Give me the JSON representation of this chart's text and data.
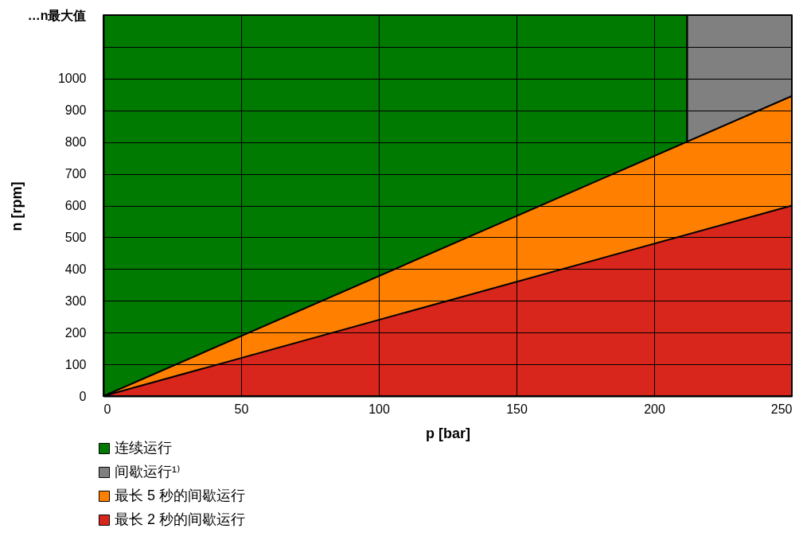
{
  "chart_data": {
    "type": "area",
    "xlabel": "p [bar]",
    "ylabel": "n [rpm]",
    "xlim": [
      0,
      250
    ],
    "xticks": [
      0,
      50,
      100,
      150,
      200,
      250
    ],
    "ylim": [
      0,
      1200
    ],
    "yticks": [
      0,
      100,
      200,
      300,
      400,
      500,
      600,
      700,
      800,
      900,
      1000,
      {
        "value": 1100,
        "label": null
      },
      {
        "value": 1200,
        "label": "…n最大值"
      }
    ],
    "grid": true,
    "legend": "bottom left",
    "series": [
      {
        "name": "连续运行",
        "color": "#007a00",
        "x": [
          0,
          212
        ],
        "values": [
          1200,
          1200
        ]
      },
      {
        "name": "间歇运行¹⁾",
        "color": "#808080",
        "x": [
          212,
          250
        ],
        "values": [
          1200,
          1200
        ]
      },
      {
        "name": "最长 5 秒的间歇运行",
        "color": "#ff8000",
        "x": [
          0,
          250
        ],
        "values": [
          0,
          945
        ]
      },
      {
        "name": "最长 2 秒的间歇运行",
        "color": "#d9261c",
        "x": [
          0,
          250
        ],
        "values": [
          0,
          600
        ]
      }
    ]
  }
}
